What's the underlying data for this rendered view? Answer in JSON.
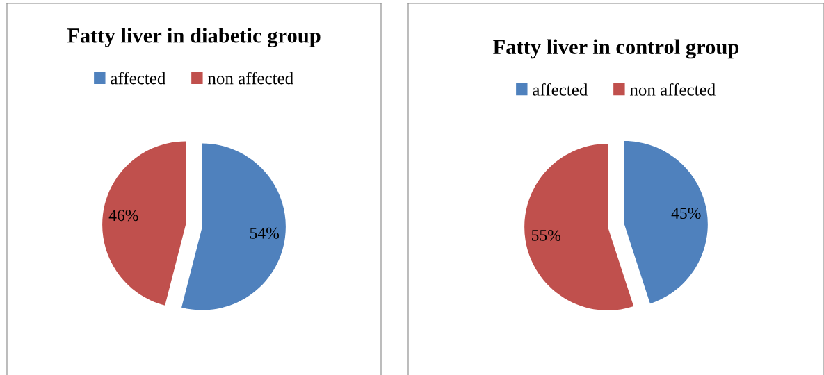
{
  "chart_data": [
    {
      "type": "pie",
      "title": "Fatty liver in diabetic group",
      "categories": [
        "affected",
        "non affected"
      ],
      "values": [
        54,
        46
      ],
      "colors": [
        "#4f81bd",
        "#c0504d"
      ],
      "value_labels": [
        "54%",
        "46%"
      ],
      "legend": "top"
    },
    {
      "type": "pie",
      "title": "Fatty liver in control group",
      "categories": [
        "affected",
        "non affected"
      ],
      "values": [
        45,
        55
      ],
      "colors": [
        "#4f81bd",
        "#c0504d"
      ],
      "value_labels": [
        "45%",
        "55%"
      ],
      "legend": "top"
    }
  ]
}
